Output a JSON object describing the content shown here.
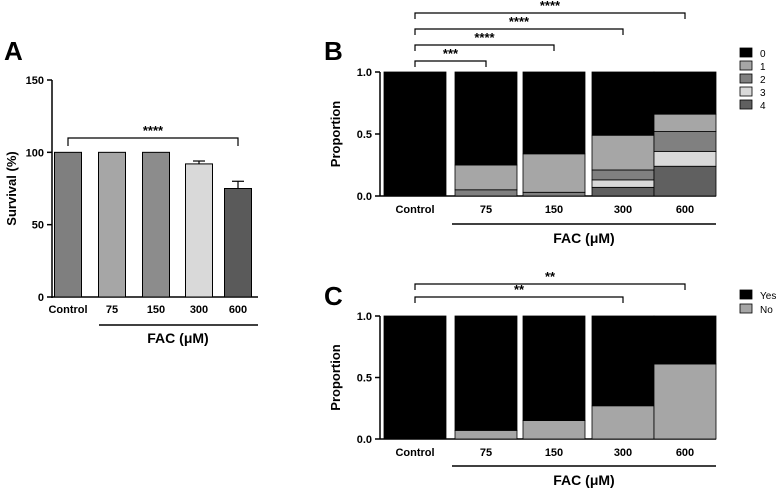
{
  "chart_data": [
    {
      "panel": "A",
      "type": "bar",
      "categories": [
        "Control",
        "75",
        "150",
        "300",
        "600"
      ],
      "values": [
        100,
        100,
        100,
        92,
        75
      ],
      "errors": [
        0,
        0,
        0,
        2,
        5
      ],
      "colors": [
        "#7f7f7f",
        "#a6a6a6",
        "#8c8c8c",
        "#d9d9d9",
        "#5a5a5a"
      ],
      "ylabel": "Survival (%)",
      "xlabel": "FAC (μM)",
      "ylim": [
        0,
        150
      ],
      "yticks": [
        "0",
        "50",
        "100",
        "150"
      ],
      "significance": [
        {
          "from": 0,
          "to": 4,
          "label": "****"
        }
      ]
    },
    {
      "panel": "B",
      "type": "bar",
      "stacked": true,
      "categories": [
        "Control",
        "75",
        "150",
        "300",
        "600"
      ],
      "ylabel": "Proportion",
      "xlabel": "FAC (μM)",
      "ylim": [
        0,
        1
      ],
      "yticks": [
        "0.0",
        "0.5",
        "1.0"
      ],
      "legend_position": "right",
      "series": [
        {
          "name": "4",
          "color": "#606060",
          "values": [
            0,
            0,
            0,
            0.07,
            0.24
          ]
        },
        {
          "name": "3",
          "color": "#d9d9d9",
          "values": [
            0,
            0,
            0,
            0.06,
            0.12
          ]
        },
        {
          "name": "2",
          "color": "#808080",
          "values": [
            0,
            0.05,
            0.03,
            0.08,
            0.16
          ]
        },
        {
          "name": "1",
          "color": "#a6a6a6",
          "values": [
            0,
            0.2,
            0.31,
            0.28,
            0.14
          ]
        },
        {
          "name": "0",
          "color": "#000000",
          "values": [
            1,
            0.75,
            0.66,
            0.51,
            0.34
          ]
        }
      ],
      "legend_order": [
        "0",
        "1",
        "2",
        "3",
        "4"
      ],
      "significance": [
        {
          "from": 0,
          "to": 1,
          "label": "***"
        },
        {
          "from": 0,
          "to": 2,
          "label": "****"
        },
        {
          "from": 0,
          "to": 3,
          "label": "****"
        },
        {
          "from": 0,
          "to": 4,
          "label": "****"
        }
      ]
    },
    {
      "panel": "C",
      "type": "bar",
      "stacked": true,
      "categories": [
        "Control",
        "75",
        "150",
        "300",
        "600"
      ],
      "ylabel": "Proportion",
      "xlabel": "FAC (μM)",
      "ylim": [
        0,
        1
      ],
      "yticks": [
        "0.0",
        "0.5",
        "1.0"
      ],
      "legend_position": "right",
      "series": [
        {
          "name": "No",
          "color": "#a6a6a6",
          "values": [
            0,
            0.07,
            0.15,
            0.27,
            0.61
          ]
        },
        {
          "name": "Yes",
          "color": "#000000",
          "values": [
            1,
            0.93,
            0.85,
            0.73,
            0.39
          ]
        }
      ],
      "legend_order": [
        "Yes",
        "No"
      ],
      "significance": [
        {
          "from": 0,
          "to": 3,
          "label": "**"
        },
        {
          "from": 0,
          "to": 4,
          "label": "**"
        }
      ]
    }
  ]
}
